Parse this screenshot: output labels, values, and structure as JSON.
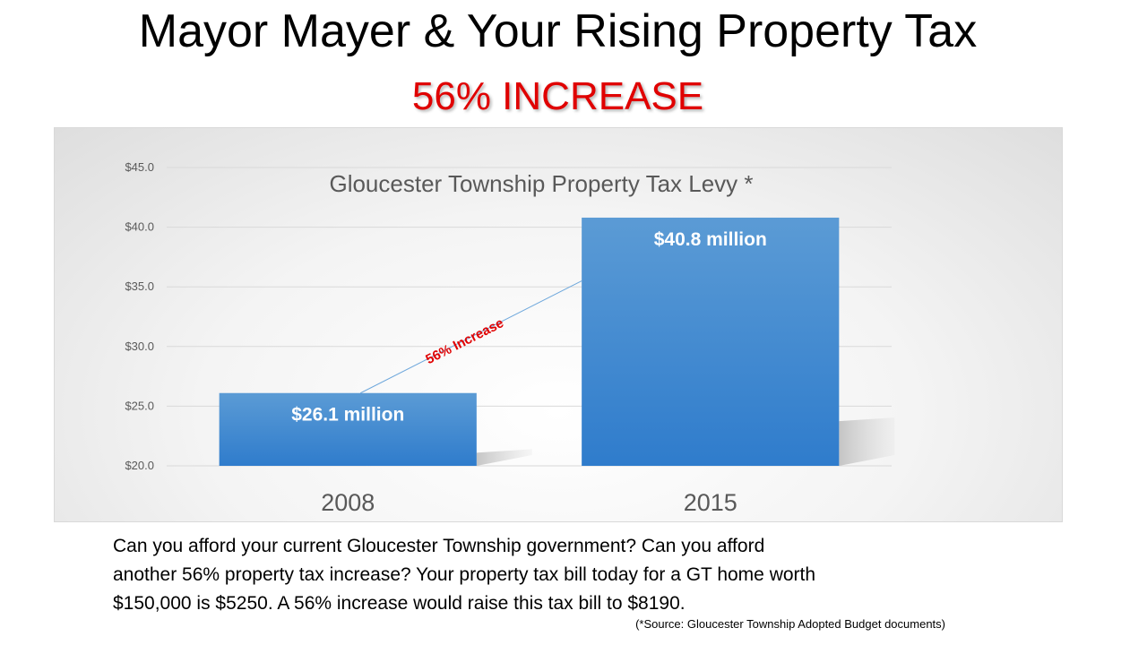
{
  "title": "Mayor Mayer & Your Rising Property Tax",
  "subtitle": "56% INCREASE",
  "chart_data": {
    "type": "bar",
    "title": "Gloucester Township Property Tax Levy *",
    "categories": [
      "2008",
      "2015"
    ],
    "values": [
      26.1,
      40.8
    ],
    "data_labels": [
      "$26.1 million",
      "$40.8 million"
    ],
    "ylim": [
      20,
      45
    ],
    "yticks": [
      20,
      25,
      30,
      35,
      40,
      45
    ],
    "ytick_labels": [
      "$20.0",
      "$25.0",
      "$30.0",
      "$35.0",
      "$40.0",
      "$45.0"
    ],
    "grid": true,
    "annotation": "56% Increase",
    "colors": {
      "bar": "#3c86cf",
      "annotation": "#e00000"
    }
  },
  "footer": {
    "line1": "Can you afford your current Gloucester Township government? Can you afford",
    "line2": "another 56% property tax increase? Your property tax bill today for a GT home worth",
    "line3": "$150,000 is $5250. A 56% increase would raise this tax bill to $8190.",
    "source": "(*Source: Gloucester Township Adopted  Budget documents)"
  }
}
